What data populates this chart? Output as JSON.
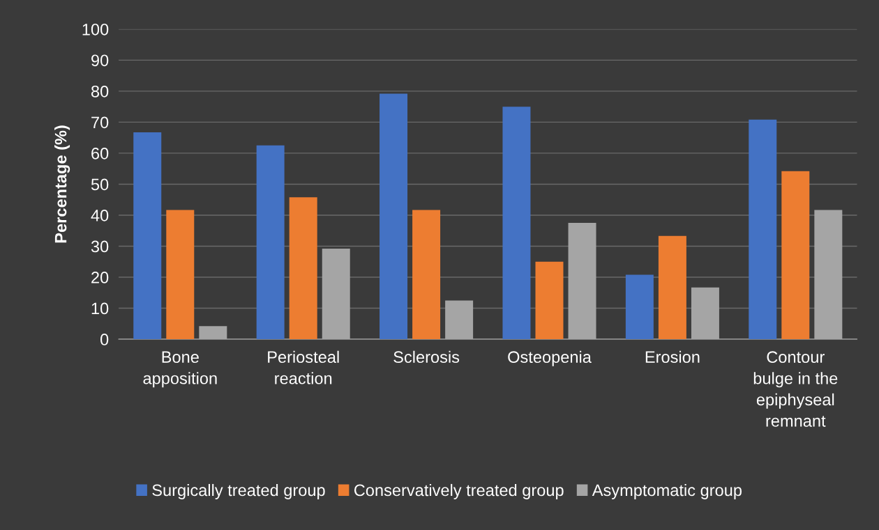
{
  "chart_data": {
    "type": "bar",
    "ylabel": "Percentage (%)",
    "categories": [
      "Bone\napposition",
      "Periosteal\nreaction",
      "Sclerosis",
      "Osteopenia",
      "Erosion",
      "Contour\nbulge in the\nepiphyseal\nremnant"
    ],
    "series": [
      {
        "name": "Surgically treated group",
        "color": "#4472c4",
        "values": [
          66.7,
          62.5,
          79.2,
          75.0,
          20.8,
          70.8
        ]
      },
      {
        "name": "Conservatively treated group",
        "color": "#ed7d31",
        "values": [
          41.7,
          45.8,
          41.7,
          25.0,
          33.3,
          54.2
        ]
      },
      {
        "name": "Asymptomatic group",
        "color": "#a5a5a5",
        "values": [
          4.2,
          29.2,
          12.5,
          37.5,
          16.7,
          41.7
        ]
      }
    ],
    "ylim": [
      0,
      100
    ],
    "yticks": [
      0,
      10,
      20,
      30,
      40,
      50,
      60,
      70,
      80,
      90,
      100
    ],
    "grid": "y",
    "legend": "bottom"
  }
}
